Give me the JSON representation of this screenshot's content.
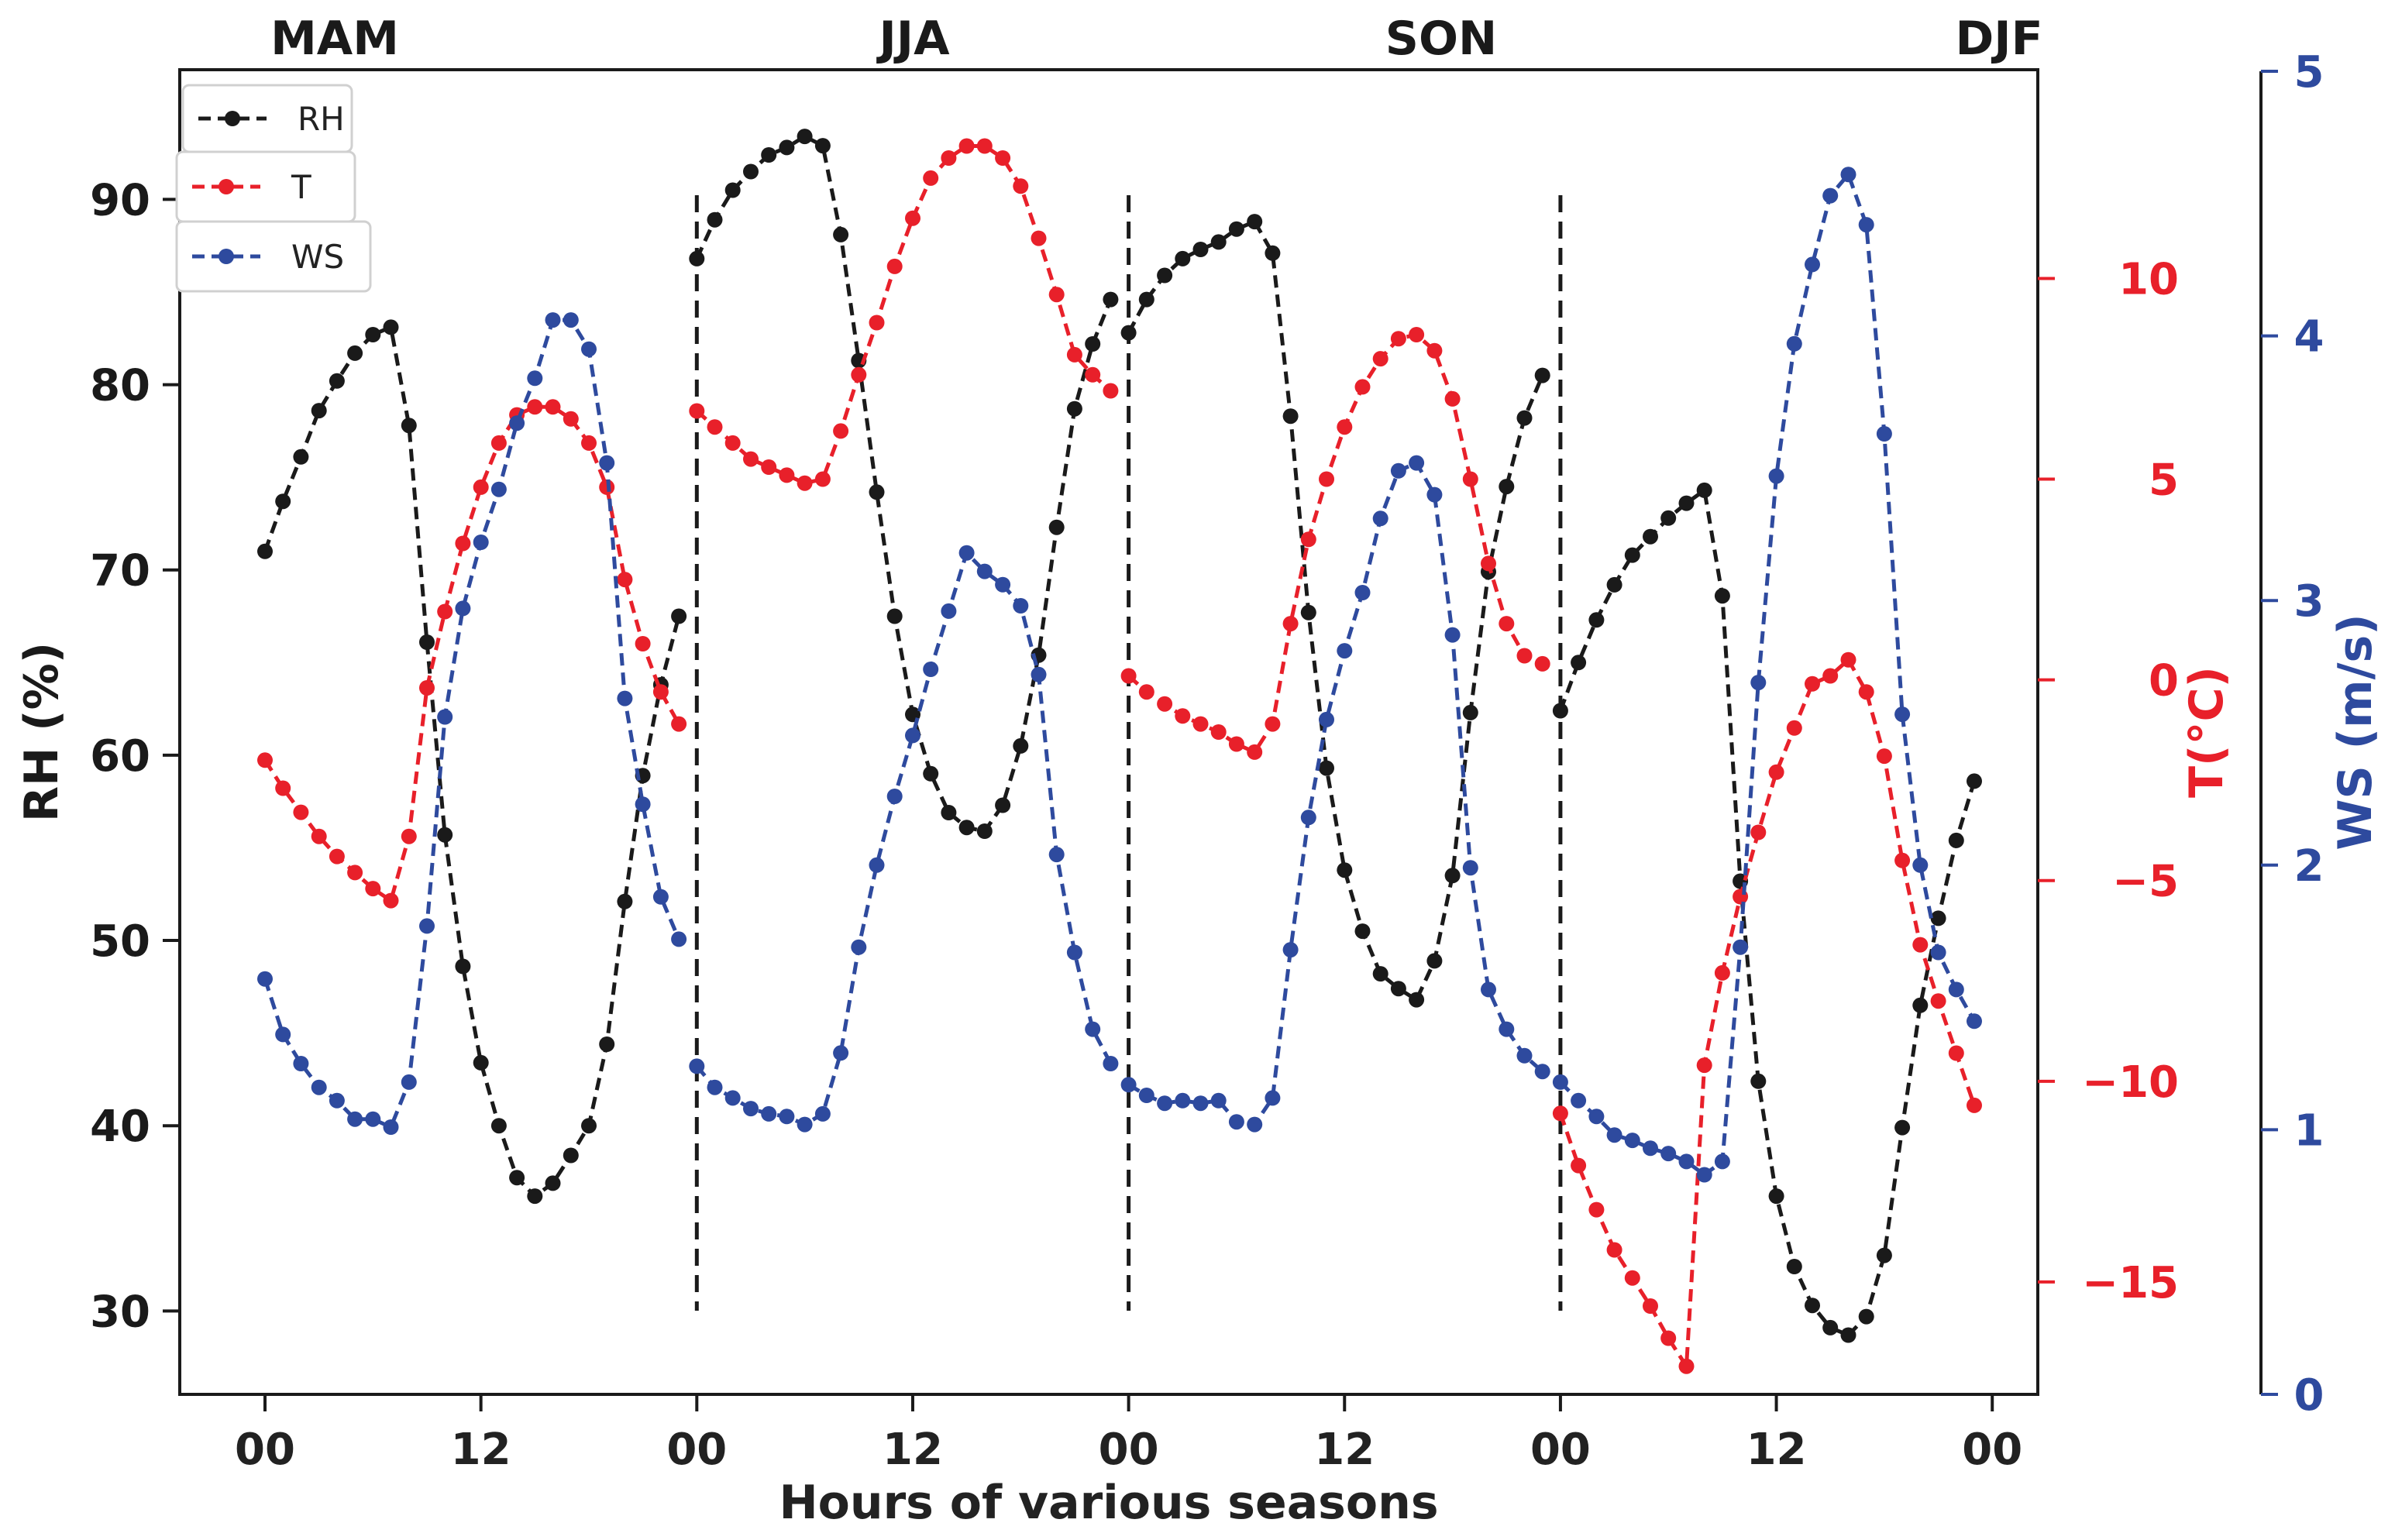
{
  "chart_data": {
    "type": "line",
    "xlabel": "Hours of various seasons",
    "seasons": [
      "MAM",
      "JJA",
      "SON",
      "DJF"
    ],
    "x_tick_labels": [
      "00",
      "12",
      "00",
      "12",
      "00",
      "12",
      "00",
      "12",
      "00"
    ],
    "x_tick_hours": [
      0,
      12,
      24,
      36,
      48,
      60,
      72,
      84,
      96
    ],
    "season_dividers_hour": [
      24,
      48,
      72
    ],
    "hours": [
      0,
      1,
      2,
      3,
      4,
      5,
      6,
      7,
      8,
      9,
      10,
      11,
      12,
      13,
      14,
      15,
      16,
      17,
      18,
      19,
      20,
      21,
      22,
      23
    ],
    "axes": {
      "rh": {
        "label": "RH (%)",
        "ylim": [
          25.5,
          97
        ],
        "ticks": [
          30,
          40,
          50,
          60,
          70,
          80,
          90
        ],
        "color": "#1a1a1a"
      },
      "t": {
        "label": "T(°C)",
        "ylim": [
          -17.8,
          15.2
        ],
        "ticks": [
          -15,
          -10,
          -5,
          0,
          5,
          10
        ],
        "tick_labels": [
          "−15",
          "−10",
          "−5",
          "0",
          "5",
          "10"
        ],
        "color": "#e8202a"
      },
      "ws": {
        "label": "WS (m/s)",
        "ylim": [
          0,
          5
        ],
        "ticks": [
          0,
          1,
          2,
          3,
          4,
          5
        ],
        "color": "#2e4a9e"
      }
    },
    "series": [
      {
        "name": "RH",
        "axis": "rh",
        "color": "#1a1a1a",
        "seasons": {
          "MAM": [
            71.0,
            73.7,
            76.1,
            78.6,
            80.2,
            81.7,
            82.7,
            83.1,
            77.8,
            66.1,
            55.7,
            48.6,
            43.4,
            40.0,
            37.2,
            36.2,
            36.9,
            38.4,
            40.0,
            44.4,
            52.1,
            58.9,
            63.8,
            67.5
          ],
          "JJA": [
            86.8,
            88.9,
            90.5,
            91.5,
            92.4,
            92.8,
            93.4,
            92.9,
            88.1,
            81.3,
            74.2,
            67.5,
            62.2,
            59.0,
            56.9,
            56.1,
            55.9,
            57.3,
            60.5,
            65.4,
            72.3,
            78.7,
            82.2,
            84.6
          ],
          "SON": [
            82.8,
            84.6,
            85.9,
            86.8,
            87.3,
            87.7,
            88.4,
            88.8,
            87.1,
            78.3,
            67.7,
            59.3,
            53.8,
            50.5,
            48.2,
            47.4,
            46.8,
            48.9,
            53.5,
            62.3,
            69.9,
            74.5,
            78.2,
            80.5
          ],
          "DJF": [
            62.4,
            65.0,
            67.3,
            69.2,
            70.8,
            71.8,
            72.8,
            73.6,
            74.3,
            68.6,
            53.2,
            42.4,
            36.2,
            32.4,
            30.3,
            29.1,
            28.7,
            29.7,
            33.0,
            39.9,
            46.5,
            51.2,
            55.4,
            58.6
          ]
        }
      },
      {
        "name": "T",
        "axis": "t",
        "color": "#e8202a",
        "seasons": {
          "MAM": [
            -2.0,
            -2.7,
            -3.3,
            -3.9,
            -4.4,
            -4.8,
            -5.2,
            -5.5,
            -3.9,
            -0.2,
            1.7,
            3.4,
            4.8,
            5.9,
            6.6,
            6.8,
            6.8,
            6.5,
            5.9,
            4.8,
            2.5,
            0.9,
            -0.3,
            -1.1
          ],
          "JJA": [
            6.7,
            6.3,
            5.9,
            5.5,
            5.3,
            5.1,
            4.9,
            5.0,
            6.2,
            7.6,
            8.9,
            10.3,
            11.5,
            12.5,
            13.0,
            13.3,
            13.3,
            13.0,
            12.3,
            11.0,
            9.6,
            8.1,
            7.6,
            7.2
          ],
          "SON": [
            0.1,
            -0.3,
            -0.6,
            -0.9,
            -1.1,
            -1.3,
            -1.6,
            -1.8,
            -1.1,
            1.4,
            3.5,
            5.0,
            6.3,
            7.3,
            8.0,
            8.5,
            8.6,
            8.2,
            7.0,
            5.0,
            2.9,
            1.4,
            0.6,
            0.4
          ],
          "DJF": [
            -10.8,
            -12.1,
            -13.2,
            -14.2,
            -14.9,
            -15.6,
            -16.4,
            -17.1,
            -9.6,
            -7.3,
            -5.4,
            -3.8,
            -2.3,
            -1.2,
            -0.1,
            0.1,
            0.5,
            -0.3,
            -1.9,
            -4.5,
            -6.6,
            -8.0,
            -9.3,
            -10.6
          ]
        }
      },
      {
        "name": "WS",
        "axis": "ws",
        "color": "#2e4a9e",
        "seasons": {
          "MAM": [
            1.57,
            1.36,
            1.25,
            1.16,
            1.11,
            1.04,
            1.04,
            1.01,
            1.18,
            1.77,
            2.56,
            2.97,
            3.22,
            3.42,
            3.67,
            3.84,
            4.06,
            4.06,
            3.95,
            3.52,
            2.63,
            2.23,
            1.88,
            1.72
          ],
          "JJA": [
            1.24,
            1.16,
            1.12,
            1.08,
            1.06,
            1.05,
            1.02,
            1.06,
            1.29,
            1.69,
            2.0,
            2.26,
            2.49,
            2.74,
            2.96,
            3.18,
            3.11,
            3.06,
            2.98,
            2.72,
            2.04,
            1.67,
            1.38,
            1.25
          ],
          "SON": [
            1.17,
            1.13,
            1.1,
            1.11,
            1.1,
            1.11,
            1.03,
            1.02,
            1.12,
            1.68,
            2.18,
            2.55,
            2.81,
            3.03,
            3.31,
            3.49,
            3.52,
            3.4,
            2.87,
            1.99,
            1.53,
            1.38,
            1.28,
            1.22
          ],
          "DJF": [
            1.18,
            1.11,
            1.05,
            0.98,
            0.96,
            0.93,
            0.91,
            0.88,
            0.83,
            0.88,
            1.69,
            2.69,
            3.47,
            3.97,
            4.27,
            4.53,
            4.61,
            4.42,
            3.63,
            2.57,
            2.0,
            1.67,
            1.53,
            1.41
          ]
        }
      }
    ],
    "legend": {
      "position": "top-left",
      "entries": [
        "RH",
        "T",
        "WS"
      ]
    }
  }
}
